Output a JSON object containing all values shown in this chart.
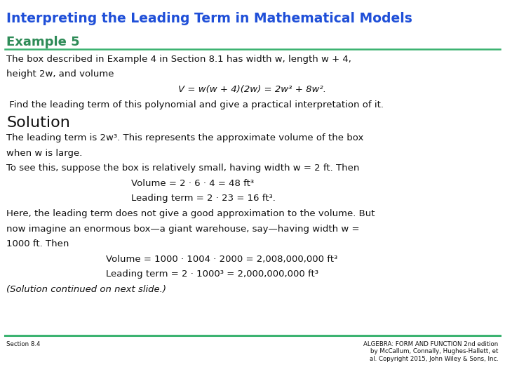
{
  "title": "Interpreting the Leading Term in Mathematical Models",
  "title_color": "#1F4FD8",
  "title_fontsize": 13.5,
  "example_heading": "Example 5",
  "example_heading_color": "#2E8B57",
  "example_heading_fontsize": 13,
  "solution_heading": "Solution",
  "solution_heading_fontsize": 16,
  "body_fontsize": 9.5,
  "body_color": "#111111",
  "footer_left": "Section 8.4",
  "footer_right": "ALGEBRA: FORM AND FUNCTION 2nd edition\nby McCallum, Connally, Hughes-Hallett, et\nal. Copyright 2015, John Wiley & Sons, Inc.",
  "footer_fontsize": 6.2,
  "green_line_color": "#3CB371",
  "bg_color": "#FFFFFF",
  "line1": "The box described in Example 4 in Section 8.1 has width w, length w + 4,",
  "line2": "height 2w, and volume",
  "line3": "V = w(w + 4)(2w) = 2w³ + 8w².",
  "line4": " Find the leading term of this polynomial and give a practical interpretation of it.",
  "sol_line1": "The leading term is 2w³. This represents the approximate volume of the box",
  "sol_line2": "when w is large.",
  "sol_line3": "To see this, suppose the box is relatively small, having width w = 2 ft. Then",
  "sol_line4": "Volume = 2 · 6 · 4 = 48 ft³",
  "sol_line5": "Leading term = 2 · 23 = 16 ft³.",
  "sol_line6": "Here, the leading term does not give a good approximation to the volume. But",
  "sol_line7": "now imagine an enormous box—a giant warehouse, say—having width w =",
  "sol_line8": "1000 ft. Then",
  "sol_line9": "Volume = 1000 · 1004 · 2000 = 2,008,000,000 ft³",
  "sol_line10": "Leading term = 2 · 1000³ = 2,000,000,000 ft³",
  "sol_line11": "(Solution continued on next slide.)"
}
